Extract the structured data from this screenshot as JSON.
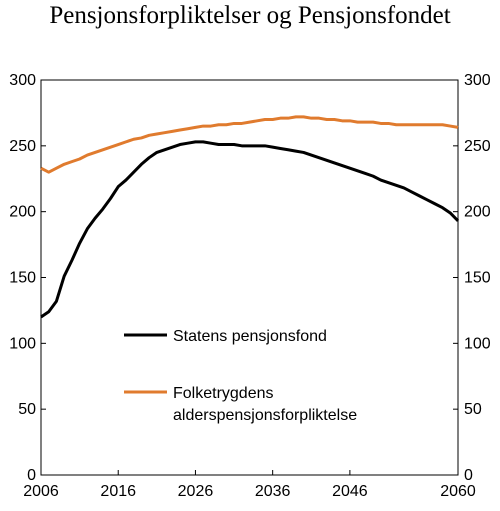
{
  "chart_data": {
    "type": "line",
    "title": "Pensjonsforpliktelser og Pensjonsfondet",
    "xlim": [
      2006,
      2060
    ],
    "ylim": [
      0,
      300
    ],
    "x_ticks": [
      2006,
      2016,
      2026,
      2036,
      2046,
      2060
    ],
    "y_ticks": [
      0,
      50,
      100,
      150,
      200,
      250,
      300
    ],
    "y_axis_left_and_right": true,
    "grid": false,
    "legend_placement": "center",
    "series": [
      {
        "name": "Statens pensjonsfond",
        "color": "#000000",
        "x": [
          2006,
          2007,
          2008,
          2009,
          2010,
          2011,
          2012,
          2013,
          2014,
          2015,
          2016,
          2017,
          2018,
          2019,
          2020,
          2021,
          2022,
          2023,
          2024,
          2025,
          2026,
          2027,
          2028,
          2029,
          2030,
          2031,
          2032,
          2033,
          2034,
          2035,
          2036,
          2037,
          2038,
          2039,
          2040,
          2041,
          2042,
          2043,
          2044,
          2045,
          2046,
          2047,
          2048,
          2049,
          2050,
          2051,
          2052,
          2053,
          2054,
          2055,
          2056,
          2057,
          2058,
          2059,
          2060
        ],
        "values": [
          120,
          124,
          132,
          151,
          163,
          176,
          187,
          195,
          202,
          210,
          219,
          224,
          230,
          236,
          241,
          245,
          247,
          249,
          251,
          252,
          253,
          253,
          252,
          251,
          251,
          251,
          250,
          250,
          250,
          250,
          249,
          248,
          247,
          246,
          245,
          243,
          241,
          239,
          237,
          235,
          233,
          231,
          229,
          227,
          224,
          222,
          220,
          218,
          215,
          212,
          209,
          206,
          203,
          199,
          193
        ]
      },
      {
        "name": "Folketrygdens\nalderspensjonsforpliktelse",
        "color": "#e07b2e",
        "x": [
          2006,
          2007,
          2008,
          2009,
          2010,
          2011,
          2012,
          2013,
          2014,
          2015,
          2016,
          2017,
          2018,
          2019,
          2020,
          2021,
          2022,
          2023,
          2024,
          2025,
          2026,
          2027,
          2028,
          2029,
          2030,
          2031,
          2032,
          2033,
          2034,
          2035,
          2036,
          2037,
          2038,
          2039,
          2040,
          2041,
          2042,
          2043,
          2044,
          2045,
          2046,
          2047,
          2048,
          2049,
          2050,
          2051,
          2052,
          2053,
          2054,
          2055,
          2056,
          2057,
          2058,
          2059,
          2060
        ],
        "values": [
          233,
          230,
          233,
          236,
          238,
          240,
          243,
          245,
          247,
          249,
          251,
          253,
          255,
          256,
          258,
          259,
          260,
          261,
          262,
          263,
          264,
          265,
          265,
          266,
          266,
          267,
          267,
          268,
          269,
          270,
          270,
          271,
          271,
          272,
          272,
          271,
          271,
          270,
          270,
          269,
          269,
          268,
          268,
          268,
          267,
          267,
          266,
          266,
          266,
          266,
          266,
          266,
          266,
          265,
          264
        ]
      }
    ]
  },
  "legend": {
    "items": [
      {
        "lines": [
          "Statens pensjonsfond"
        ],
        "color": "#000000"
      },
      {
        "lines": [
          "Folketrygdens",
          "alderspensjonsforpliktelse"
        ],
        "color": "#e07b2e"
      }
    ]
  }
}
